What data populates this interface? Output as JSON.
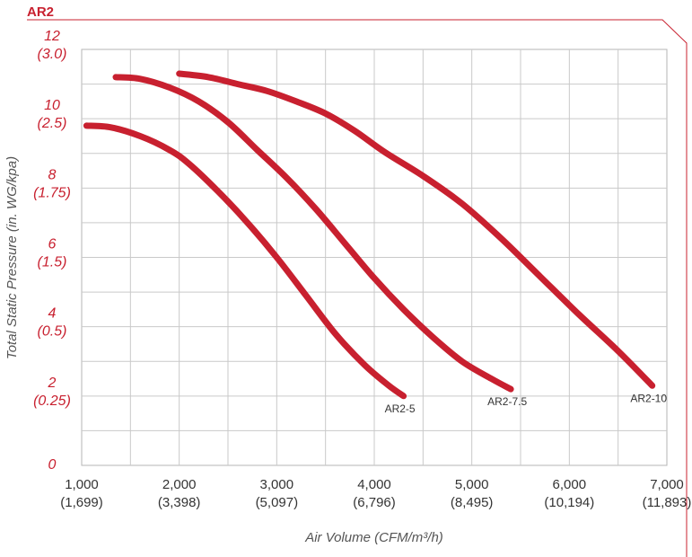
{
  "header": {
    "title": "AR2",
    "accent_color": "#c8202f"
  },
  "chart_data": {
    "type": "line",
    "title": "AR2",
    "xlabel": "Air Volume (CFM/m³/h)",
    "ylabel": "Total Static Pressure (in. WG/kpa)",
    "xlim": [
      1000,
      7000
    ],
    "ylim": [
      0,
      12
    ],
    "grid": true,
    "x_ticks": [
      {
        "value": 1000,
        "main": "1,000",
        "sub": "(1,699)"
      },
      {
        "value": 2000,
        "main": "2,000",
        "sub": "(3,398)"
      },
      {
        "value": 3000,
        "main": "3,000",
        "sub": "(5,097)"
      },
      {
        "value": 4000,
        "main": "4,000",
        "sub": "(6,796)"
      },
      {
        "value": 5000,
        "main": "5,000",
        "sub": "(8,495)"
      },
      {
        "value": 6000,
        "main": "6,000",
        "sub": "(10,194)"
      },
      {
        "value": 7000,
        "main": "7,000",
        "sub": "(11,893)"
      }
    ],
    "y_ticks": [
      {
        "value": 12,
        "main": "12",
        "sub": "(3.0)"
      },
      {
        "value": 10,
        "main": "10",
        "sub": "(2.5)"
      },
      {
        "value": 8,
        "main": "8",
        "sub": "(1.75)"
      },
      {
        "value": 6,
        "main": "6",
        "sub": "(1.5)"
      },
      {
        "value": 4,
        "main": "4",
        "sub": "(0.5)"
      },
      {
        "value": 2,
        "main": "2",
        "sub": "(0.25)"
      },
      {
        "value": 0,
        "main": "0",
        "sub": ""
      }
    ],
    "series": [
      {
        "name": "AR2-5",
        "color": "#c8202f",
        "x": [
          1050,
          1300,
          1600,
          1900,
          2100,
          2400,
          2700,
          3000,
          3300,
          3600,
          3900,
          4150,
          4300
        ],
        "y": [
          9.8,
          9.75,
          9.5,
          9.1,
          8.7,
          7.9,
          7.0,
          6.0,
          4.9,
          3.8,
          2.9,
          2.3,
          2.0
        ]
      },
      {
        "name": "AR2-7.5",
        "color": "#c8202f",
        "x": [
          1350,
          1600,
          1900,
          2200,
          2500,
          2800,
          3100,
          3400,
          3700,
          4000,
          4300,
          4600,
          4900,
          5200,
          5400
        ],
        "y": [
          11.2,
          11.15,
          10.9,
          10.5,
          9.9,
          9.1,
          8.3,
          7.4,
          6.4,
          5.4,
          4.5,
          3.7,
          3.0,
          2.5,
          2.2
        ]
      },
      {
        "name": "AR2-10",
        "color": "#c8202f",
        "x": [
          2000,
          2300,
          2600,
          2900,
          3200,
          3500,
          3800,
          4100,
          4500,
          4900,
          5300,
          5700,
          6100,
          6500,
          6850
        ],
        "y": [
          11.3,
          11.2,
          11.0,
          10.8,
          10.5,
          10.15,
          9.65,
          9.05,
          8.35,
          7.55,
          6.55,
          5.45,
          4.35,
          3.3,
          2.3
        ]
      }
    ]
  }
}
